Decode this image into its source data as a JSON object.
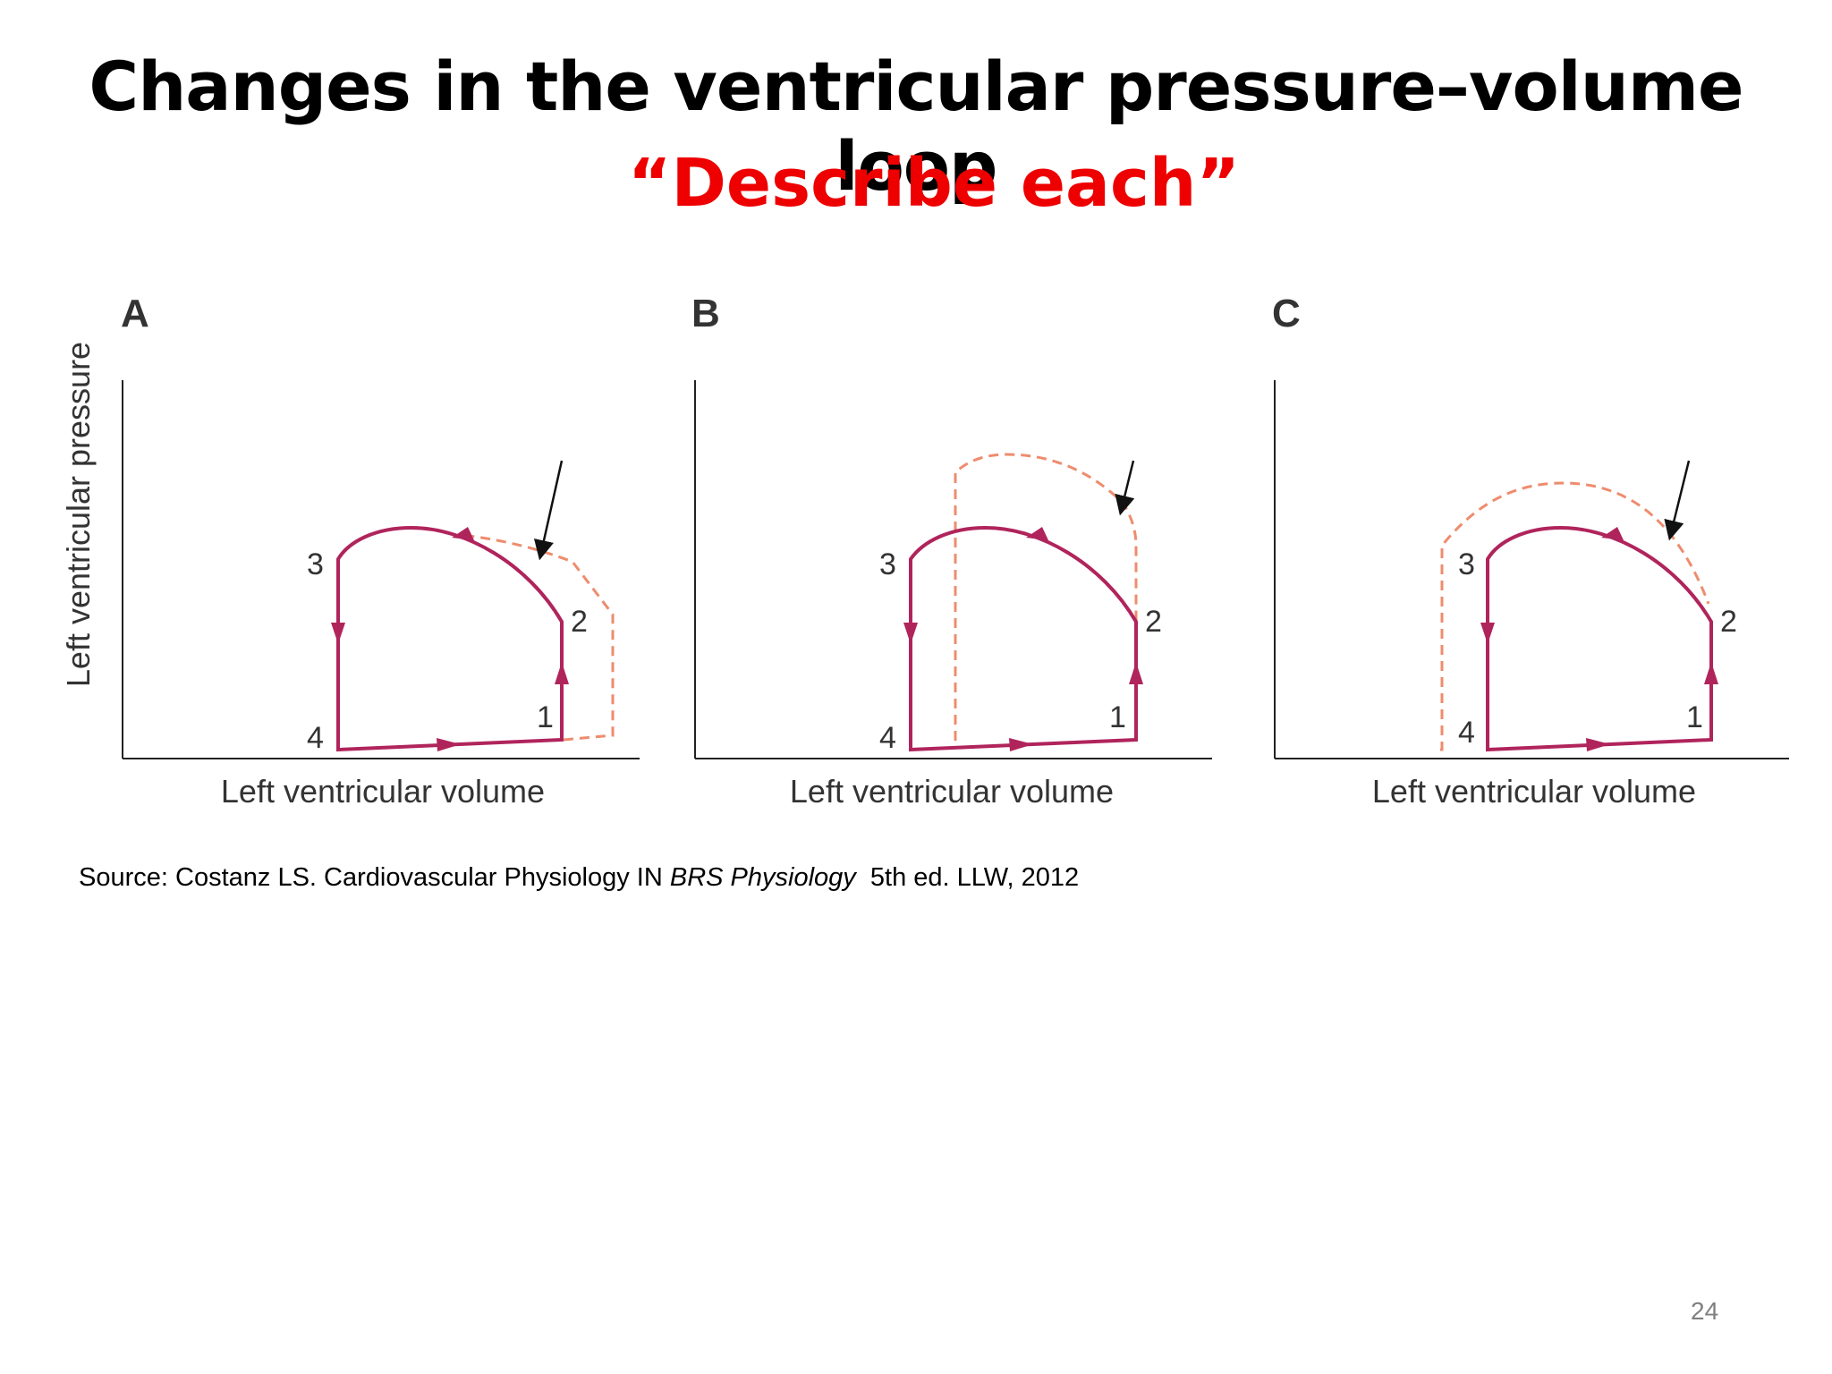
{
  "slide": {
    "title": "Changes in the ventricular pressure–volume loop",
    "subtitle": "“Describe each”",
    "source_prefix": "Source: Costanz LS. Cardiovascular Physiology IN ",
    "source_book": "BRS Physiology",
    "source_suffix": "  5th ed. LLW, 2012",
    "page_number": "24"
  },
  "figure": {
    "y_axis_label": "Left ventricular pressure",
    "panels": [
      {
        "letter": "A",
        "x_axis_label": "Left ventricular volume",
        "points": [
          "1",
          "2",
          "3",
          "4"
        ]
      },
      {
        "letter": "B",
        "x_axis_label": "Left ventricular volume",
        "points": [
          "1",
          "2",
          "3",
          "4"
        ]
      },
      {
        "letter": "C",
        "x_axis_label": "Left ventricular volume",
        "points": [
          "1",
          "2",
          "3",
          "4"
        ]
      }
    ]
  },
  "colors": {
    "loop": "#b0245c",
    "dashed_loop": "#ee8c6e",
    "subtitle": "#ee0000"
  }
}
